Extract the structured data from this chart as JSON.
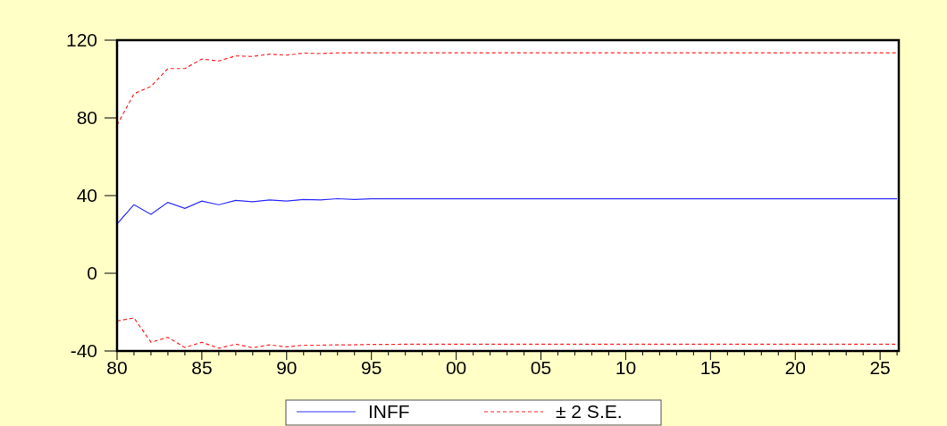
{
  "chart_data": {
    "type": "line",
    "x": [
      1980,
      1981,
      1982,
      1983,
      1984,
      1985,
      1986,
      1987,
      1988,
      1989,
      1990,
      1991,
      1992,
      1993,
      1994,
      1995,
      1996,
      1997,
      1998,
      1999,
      2000,
      2001,
      2002,
      2003,
      2004,
      2005,
      2006,
      2007,
      2008,
      2009,
      2010,
      2011,
      2012,
      2013,
      2014,
      2015,
      2016,
      2017,
      2018,
      2019,
      2020,
      2021,
      2022,
      2023,
      2024,
      2025,
      2026
    ],
    "series": [
      {
        "name": "INFF",
        "color": "#3333ff",
        "line_style": "solid",
        "values": [
          25.4,
          35.3,
          30.3,
          36.5,
          33.4,
          37.2,
          35.3,
          37.5,
          36.8,
          37.8,
          37.2,
          38.0,
          37.8,
          38.4,
          38.0,
          38.3,
          38.3,
          38.3,
          38.3,
          38.3,
          38.3,
          38.3,
          38.3,
          38.3,
          38.3,
          38.3,
          38.3,
          38.3,
          38.3,
          38.3,
          38.3,
          38.3,
          38.3,
          38.3,
          38.3,
          38.3,
          38.3,
          38.3,
          38.3,
          38.3,
          38.3,
          38.3,
          38.3,
          38.3,
          38.3,
          38.3,
          38.3
        ]
      },
      {
        "name": "± 2 S.E.",
        "color": "#ff2222",
        "line_style": "dashed",
        "values": [
          76.3,
          92.4,
          96.2,
          105.4,
          105.4,
          110.3,
          109.3,
          111.9,
          111.6,
          112.8,
          112.3,
          113.4,
          113.1,
          113.5,
          113.5,
          113.5,
          113.5,
          113.5,
          113.5,
          113.5,
          113.5,
          113.5,
          113.5,
          113.5,
          113.5,
          113.5,
          113.5,
          113.5,
          113.5,
          113.5,
          113.5,
          113.5,
          113.5,
          113.5,
          113.5,
          113.5,
          113.5,
          113.5,
          113.5,
          113.5,
          113.5,
          113.5,
          113.5,
          113.5,
          113.5,
          113.5,
          113.5
        ]
      },
      {
        "color": "#ff2222",
        "line_style": "dashed",
        "values": [
          -24.5,
          -23.0,
          -35.5,
          -33.0,
          -38.2,
          -35.5,
          -38.6,
          -36.5,
          -38.3,
          -36.8,
          -37.9,
          -37.0,
          -37.0,
          -36.8,
          -36.8,
          -36.6,
          -36.6,
          -36.5,
          -36.5,
          -36.5,
          -36.5,
          -36.5,
          -36.5,
          -36.5,
          -36.5,
          -36.5,
          -36.5,
          -36.5,
          -36.5,
          -36.5,
          -36.5,
          -36.5,
          -36.5,
          -36.5,
          -36.5,
          -36.5,
          -36.5,
          -36.5,
          -36.5,
          -36.5,
          -36.5,
          -36.5,
          -36.5,
          -36.5,
          -36.5,
          -36.5,
          -36.5
        ]
      }
    ],
    "xlim": [
      1980,
      2026.1
    ],
    "xticks": [
      {
        "value": 1980,
        "label": "80"
      },
      {
        "value": 1981,
        "label": null
      },
      {
        "value": 1982,
        "label": null
      },
      {
        "value": 1983,
        "label": null
      },
      {
        "value": 1984,
        "label": null
      },
      {
        "value": 1985,
        "label": "85"
      },
      {
        "value": 1986,
        "label": null
      },
      {
        "value": 1987,
        "label": null
      },
      {
        "value": 1988,
        "label": null
      },
      {
        "value": 1989,
        "label": null
      },
      {
        "value": 1990,
        "label": "90"
      },
      {
        "value": 1991,
        "label": null
      },
      {
        "value": 1992,
        "label": null
      },
      {
        "value": 1993,
        "label": null
      },
      {
        "value": 1994,
        "label": null
      },
      {
        "value": 1995,
        "label": "95"
      },
      {
        "value": 1996,
        "label": null
      },
      {
        "value": 1997,
        "label": null
      },
      {
        "value": 1998,
        "label": null
      },
      {
        "value": 1999,
        "label": null
      },
      {
        "value": 2000,
        "label": "00"
      },
      {
        "value": 2001,
        "label": null
      },
      {
        "value": 2002,
        "label": null
      },
      {
        "value": 2003,
        "label": null
      },
      {
        "value": 2004,
        "label": null
      },
      {
        "value": 2005,
        "label": "05"
      },
      {
        "value": 2006,
        "label": null
      },
      {
        "value": 2007,
        "label": null
      },
      {
        "value": 2008,
        "label": null
      },
      {
        "value": 2009,
        "label": null
      },
      {
        "value": 2010,
        "label": "10"
      },
      {
        "value": 2011,
        "label": null
      },
      {
        "value": 2012,
        "label": null
      },
      {
        "value": 2013,
        "label": null
      },
      {
        "value": 2014,
        "label": null
      },
      {
        "value": 2015,
        "label": "15"
      },
      {
        "value": 2016,
        "label": null
      },
      {
        "value": 2017,
        "label": null
      },
      {
        "value": 2018,
        "label": null
      },
      {
        "value": 2019,
        "label": null
      },
      {
        "value": 2020,
        "label": "20"
      },
      {
        "value": 2021,
        "label": null
      },
      {
        "value": 2022,
        "label": null
      },
      {
        "value": 2023,
        "label": null
      },
      {
        "value": 2024,
        "label": null
      },
      {
        "value": 2025,
        "label": "25"
      },
      {
        "value": 2026,
        "label": null
      }
    ],
    "ylim": [
      -40,
      120
    ],
    "yticks": [
      -40,
      0,
      40,
      80,
      120
    ],
    "grid": false,
    "legend": "bottom"
  }
}
